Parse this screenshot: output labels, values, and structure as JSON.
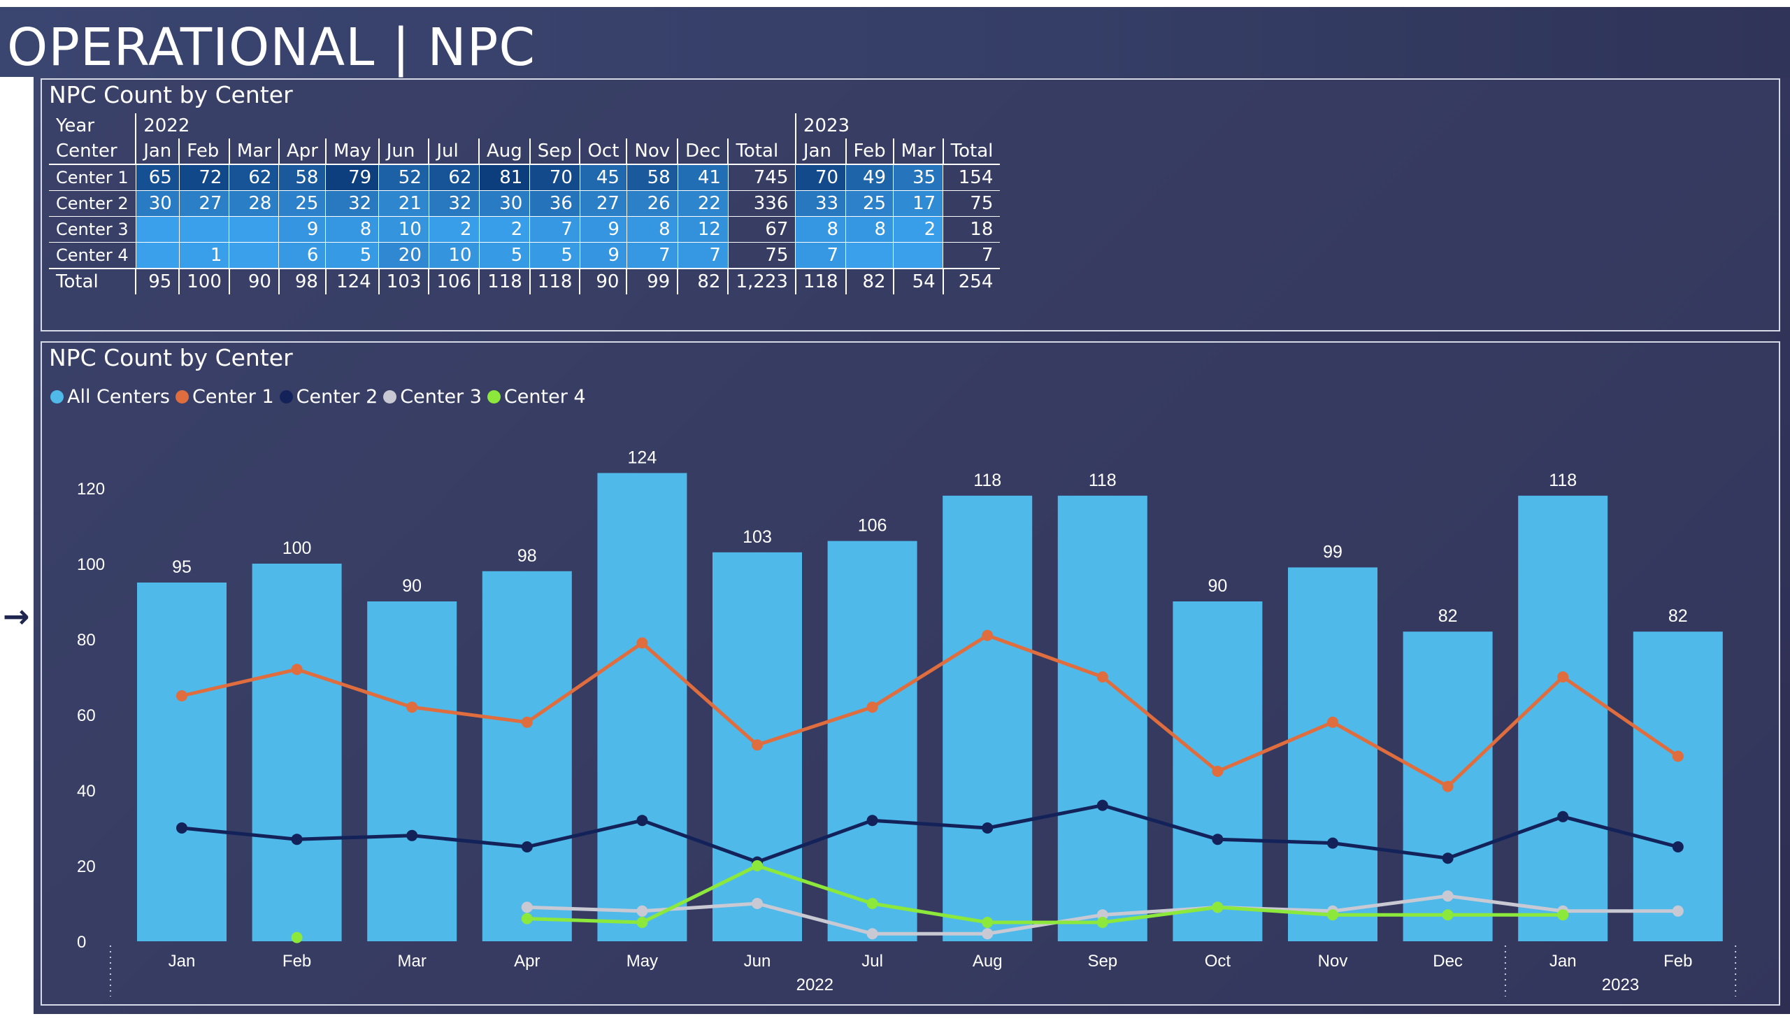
{
  "page": {
    "title": "OPERATIONAL | NPC"
  },
  "colors": {
    "all": "#4fb9ea",
    "c1": "#e06d3d",
    "c2": "#13235a",
    "c3": "#c9c9d3",
    "c4": "#8ce83b"
  },
  "icons": {
    "side_arrow": "arrow-right-icon"
  },
  "table": {
    "title": "NPC Count by Center",
    "year_label": "Year",
    "center_label": "Center",
    "year_2022": "2022",
    "year_2023": "2023",
    "months_2022": [
      "Jan",
      "Feb",
      "Mar",
      "Apr",
      "May",
      "Jun",
      "Jul",
      "Aug",
      "Sep",
      "Oct",
      "Nov",
      "Dec"
    ],
    "months_2023": [
      "Jan",
      "Feb",
      "Mar"
    ],
    "total_label": "Total",
    "rows": [
      {
        "name": "Center 1",
        "v2022": [
          "65",
          "72",
          "62",
          "58",
          "79",
          "52",
          "62",
          "81",
          "70",
          "45",
          "58",
          "41"
        ],
        "t2022": "745",
        "v2023": [
          "70",
          "49",
          "35"
        ],
        "t2023": "154"
      },
      {
        "name": "Center 2",
        "v2022": [
          "30",
          "27",
          "28",
          "25",
          "32",
          "21",
          "32",
          "30",
          "36",
          "27",
          "26",
          "22"
        ],
        "t2022": "336",
        "v2023": [
          "33",
          "25",
          "17"
        ],
        "t2023": "75"
      },
      {
        "name": "Center 3",
        "v2022": [
          "",
          "",
          "",
          "9",
          "8",
          "10",
          "2",
          "2",
          "7",
          "9",
          "8",
          "12"
        ],
        "t2022": "67",
        "v2023": [
          "8",
          "8",
          "2"
        ],
        "t2023": "18"
      },
      {
        "name": "Center 4",
        "v2022": [
          "",
          "1",
          "",
          "6",
          "5",
          "20",
          "10",
          "5",
          "5",
          "9",
          "7",
          "7"
        ],
        "t2022": "75",
        "v2023": [
          "7",
          "",
          ""
        ],
        "t2023": "7"
      }
    ],
    "totals": {
      "name": "Total",
      "v2022": [
        "95",
        "100",
        "90",
        "98",
        "124",
        "103",
        "106",
        "118",
        "118",
        "90",
        "99",
        "82"
      ],
      "t2022": "1,223",
      "v2023": [
        "118",
        "82",
        "54"
      ],
      "t2023": "254"
    }
  },
  "chart": {
    "title": "NPC Count by Center",
    "legend": [
      "All Centers",
      "Center 1",
      "Center 2",
      "Center 3",
      "Center 4"
    ]
  },
  "chart_data": {
    "type": "bar",
    "title": "NPC Count by Center",
    "categories": [
      "Jan",
      "Feb",
      "Mar",
      "Apr",
      "May",
      "Jun",
      "Jul",
      "Aug",
      "Sep",
      "Oct",
      "Nov",
      "Dec",
      "Jan",
      "Feb"
    ],
    "category_groups": [
      {
        "label": "2022",
        "count": 12
      },
      {
        "label": "2023",
        "count": 2
      }
    ],
    "yticks": [
      0,
      20,
      40,
      60,
      80,
      100,
      120
    ],
    "ylim": [
      0,
      130
    ],
    "grid": false,
    "legend_position": "top-left",
    "series": [
      {
        "name": "All Centers",
        "type": "bar",
        "values": [
          95,
          100,
          90,
          98,
          124,
          103,
          106,
          118,
          118,
          90,
          99,
          82,
          118,
          82
        ]
      },
      {
        "name": "Center 1",
        "type": "line",
        "values": [
          65,
          72,
          62,
          58,
          79,
          52,
          62,
          81,
          70,
          45,
          58,
          41,
          70,
          49
        ]
      },
      {
        "name": "Center 2",
        "type": "line",
        "values": [
          30,
          27,
          28,
          25,
          32,
          21,
          32,
          30,
          36,
          27,
          26,
          22,
          33,
          25
        ]
      },
      {
        "name": "Center 3",
        "type": "line",
        "values": [
          null,
          null,
          null,
          9,
          8,
          10,
          2,
          2,
          7,
          9,
          8,
          12,
          8,
          8
        ]
      },
      {
        "name": "Center 4",
        "type": "line",
        "values": [
          null,
          1,
          null,
          6,
          5,
          20,
          10,
          5,
          5,
          9,
          7,
          7,
          7,
          null
        ]
      }
    ]
  }
}
